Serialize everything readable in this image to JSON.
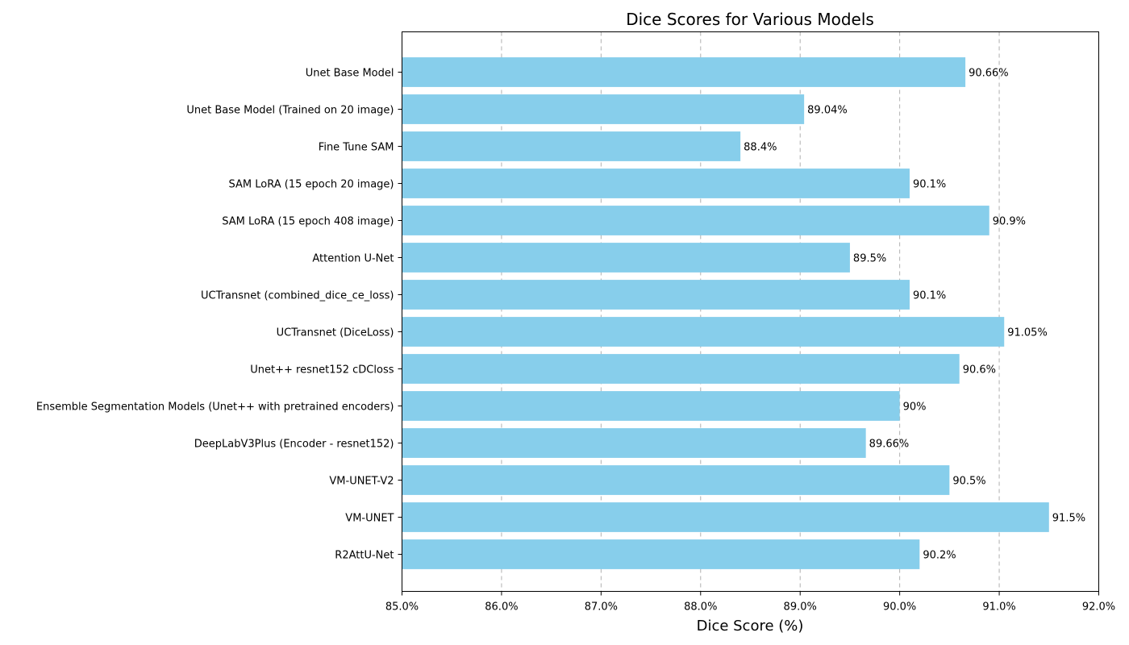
{
  "chart_data": {
    "type": "bar",
    "orientation": "horizontal",
    "title": "Dice Scores for Various Models",
    "xlabel": "Dice Score (%)",
    "ylabel": "",
    "xlim": [
      85.0,
      92.0
    ],
    "x_ticks": [
      85.0,
      86.0,
      87.0,
      88.0,
      89.0,
      90.0,
      91.0,
      92.0
    ],
    "x_tick_labels": [
      "85.0%",
      "86.0%",
      "87.0%",
      "88.0%",
      "89.0%",
      "90.0%",
      "91.0%",
      "92.0%"
    ],
    "grid": "x-axis dashed",
    "bar_color": "#87CEEB",
    "categories": [
      "Unet Base Model",
      "Unet Base Model (Trained on 20 image)",
      "Fine Tune SAM",
      "SAM LoRA (15 epoch 20 image)",
      "SAM LoRA (15 epoch 408 image)",
      "Attention U-Net",
      "UCTransnet (combined_dice_ce_loss)",
      "UCTransnet (DiceLoss)",
      "Unet++ resnet152 cDCloss",
      "Ensemble Segmentation Models (Unet++ with pretrained encoders)",
      "DeepLabV3Plus (Encoder - resnet152)",
      "VM-UNET-V2",
      "VM-UNET",
      "R2AttU-Net"
    ],
    "values": [
      90.66,
      89.04,
      88.4,
      90.1,
      90.9,
      89.5,
      90.1,
      91.05,
      90.6,
      90.0,
      89.66,
      90.5,
      91.5,
      90.2
    ],
    "value_labels": [
      "90.66%",
      "89.04%",
      "88.4%",
      "90.1%",
      "90.9%",
      "89.5%",
      "90.1%",
      "91.05%",
      "90.6%",
      "90%",
      "89.66%",
      "90.5%",
      "91.5%",
      "90.2%"
    ]
  }
}
